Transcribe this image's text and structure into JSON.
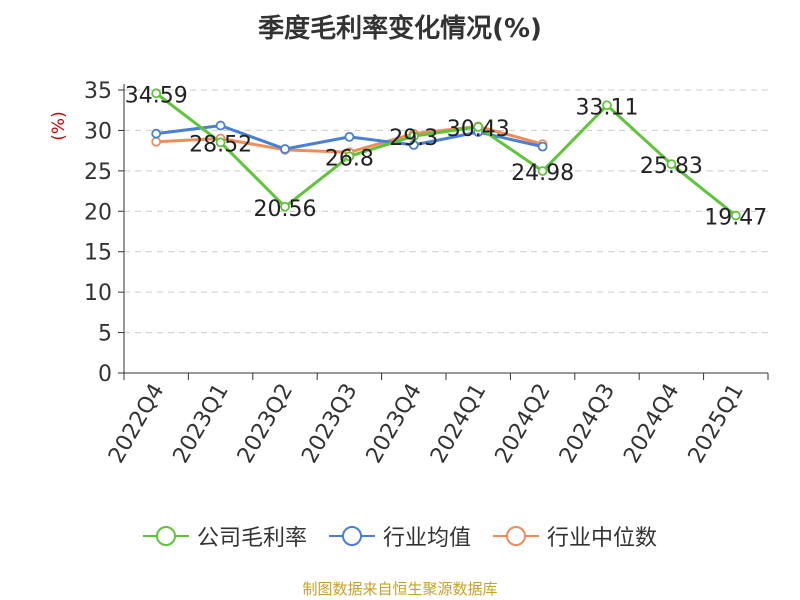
{
  "title": "季度毛利率变化情况(%)",
  "source": "制图数据来自恒生聚源数据库",
  "colors": {
    "source_text": "#c9a02a",
    "ylabel_text": "#cc0000",
    "grid": "#cccccc",
    "axis": "#333333"
  },
  "chart_data": {
    "type": "line",
    "title": "季度毛利率变化情况(%)",
    "xlabel": "",
    "ylabel": "(%)",
    "ylim": [
      0,
      35
    ],
    "yticks": [
      0,
      5,
      10,
      15,
      20,
      25,
      30,
      35
    ],
    "grid": "horizontal dashed",
    "legend_position": "bottom",
    "categories": [
      "2022Q4",
      "2023Q1",
      "2023Q2",
      "2023Q3",
      "2023Q4",
      "2024Q1",
      "2024Q2",
      "2024Q3",
      "2024Q4",
      "2025Q1"
    ],
    "series": [
      {
        "name": "公司毛利率",
        "color": "#5ec53a",
        "values": [
          34.59,
          28.52,
          20.56,
          26.8,
          29.3,
          30.43,
          24.98,
          33.11,
          25.83,
          19.47
        ],
        "labels": [
          "34.59",
          "28.52",
          "20.56",
          "26.8",
          "29.3",
          "30.43",
          "24.98",
          "33.11",
          "25.83",
          "19.47"
        ]
      },
      {
        "name": "行业均值",
        "color": "#4a7fd6",
        "values": [
          29.6,
          30.6,
          27.7,
          29.2,
          28.2,
          29.8,
          28.0,
          null,
          null,
          null
        ]
      },
      {
        "name": "行业中位数",
        "color": "#f08c5a",
        "values": [
          28.6,
          29.0,
          27.6,
          27.3,
          29.6,
          30.5,
          28.3,
          null,
          null,
          null
        ]
      }
    ]
  }
}
